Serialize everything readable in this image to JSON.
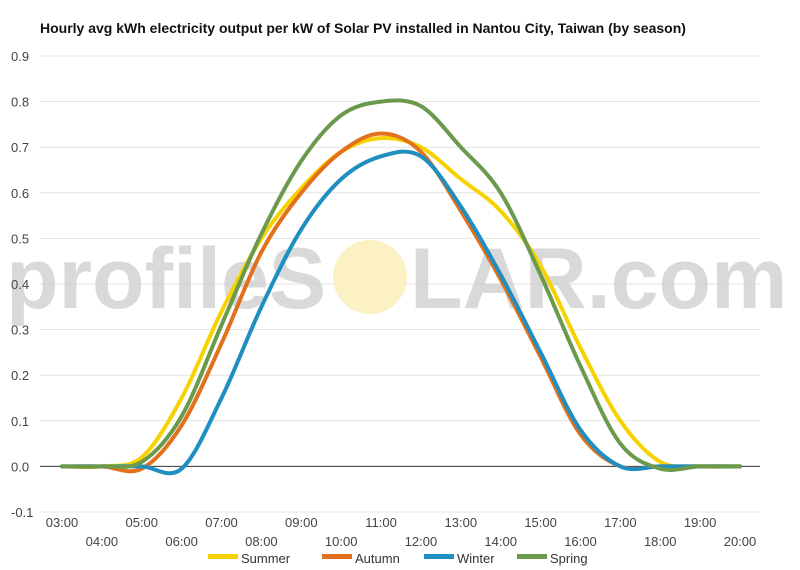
{
  "watermark": {
    "text_left": "profileS",
    "text_right": "LAR.com"
  },
  "chart_data": {
    "type": "line",
    "title": "Hourly avg kWh electricity output per kW of Solar PV installed in Nantou City, Taiwan (by season)",
    "xlabel": "",
    "ylabel": "",
    "ylim": [
      -0.1,
      0.9
    ],
    "yticks": [
      "-0.1",
      "0.0",
      "0.1",
      "0.2",
      "0.3",
      "0.4",
      "0.5",
      "0.6",
      "0.7",
      "0.8",
      "0.9"
    ],
    "categories": [
      "03:00",
      "04:00",
      "05:00",
      "06:00",
      "07:00",
      "08:00",
      "09:00",
      "10:00",
      "11:00",
      "12:00",
      "13:00",
      "14:00",
      "15:00",
      "16:00",
      "17:00",
      "18:00",
      "19:00",
      "20:00"
    ],
    "grid": true,
    "legend_position": "bottom",
    "series": [
      {
        "name": "Summer",
        "color": "#f6d300",
        "values": [
          0.0,
          0.0,
          0.02,
          0.15,
          0.34,
          0.5,
          0.61,
          0.69,
          0.72,
          0.7,
          0.63,
          0.56,
          0.44,
          0.26,
          0.1,
          0.01,
          0.0,
          0.0
        ]
      },
      {
        "name": "Autumn",
        "color": "#e2711d",
        "values": [
          0.0,
          0.0,
          -0.005,
          0.09,
          0.27,
          0.47,
          0.6,
          0.69,
          0.73,
          0.69,
          0.56,
          0.41,
          0.24,
          0.07,
          0.0,
          0.0,
          0.0,
          0.0
        ]
      },
      {
        "name": "Winter",
        "color": "#1f8ec0",
        "values": [
          0.0,
          0.0,
          0.0,
          -0.005,
          0.15,
          0.35,
          0.52,
          0.63,
          0.68,
          0.68,
          0.57,
          0.42,
          0.25,
          0.08,
          0.0,
          0.0,
          0.0,
          0.0
        ]
      },
      {
        "name": "Spring",
        "color": "#6b9a4c",
        "values": [
          0.0,
          0.0,
          0.01,
          0.11,
          0.31,
          0.51,
          0.67,
          0.77,
          0.8,
          0.79,
          0.7,
          0.6,
          0.42,
          0.22,
          0.05,
          -0.005,
          0.0,
          0.0
        ]
      }
    ]
  }
}
